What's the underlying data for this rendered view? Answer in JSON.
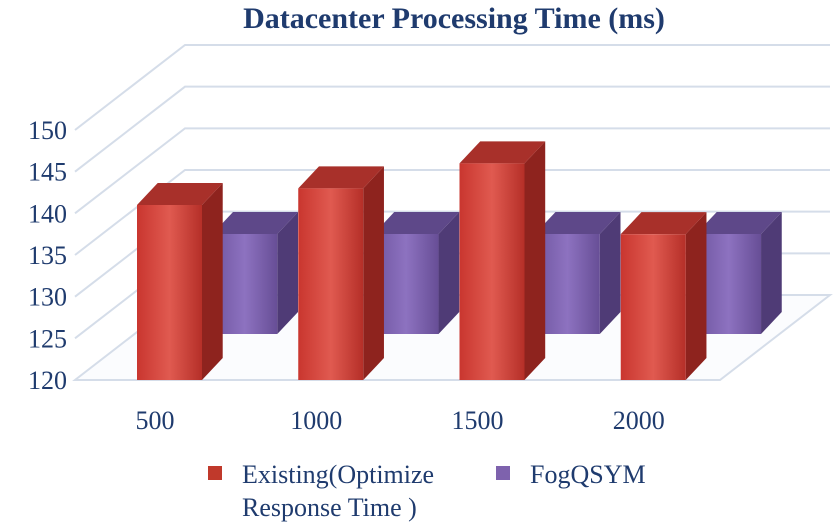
{
  "chart_data": {
    "type": "bar",
    "title": "Datacenter Processing Time (ms)",
    "xlabel": "",
    "ylabel": "",
    "categories": [
      "500",
      "1000",
      "1500",
      "2000"
    ],
    "ylim": [
      120,
      150
    ],
    "yticks": [
      "120",
      "125",
      "130",
      "135",
      "140",
      "145",
      "150"
    ],
    "grid": true,
    "legend_position": "bottom",
    "series": [
      {
        "name": "Existing(Optimize Response Time )",
        "legend_lines": [
          "Existing(Optimize",
          "Response Time )"
        ],
        "values": [
          141,
          143,
          146,
          137.5
        ],
        "color": "#c0392b"
      },
      {
        "name": "FogQSYM",
        "legend_lines": [
          "FogQSYM"
        ],
        "values": [
          132,
          132,
          132,
          132
        ],
        "color": "#7e62ad"
      }
    ]
  }
}
